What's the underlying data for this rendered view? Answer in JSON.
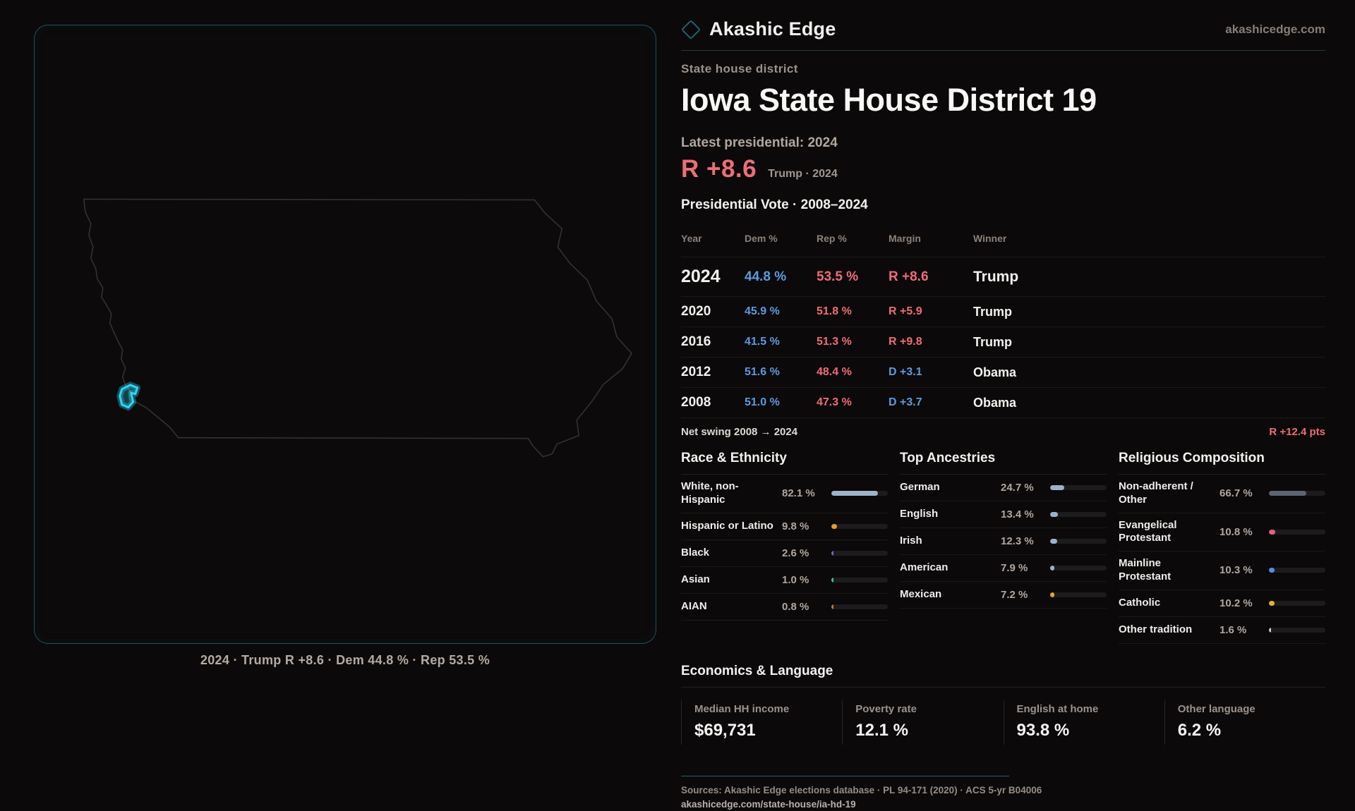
{
  "brand": {
    "name": "Akashic Edge",
    "domain": "akashicedge.com"
  },
  "header": {
    "kicker": "State house district",
    "title": "Iowa State House District 19"
  },
  "latest": {
    "label": "Latest presidential: 2024",
    "margin": "R +8.6",
    "note": "Trump · 2024"
  },
  "vote_table": {
    "title": "Presidential Vote · 2008–2024",
    "columns": {
      "year": "Year",
      "dem": "Dem %",
      "rep": "Rep %",
      "margin": "Margin",
      "winner": "Winner"
    },
    "rows": [
      {
        "year": "2024",
        "dem": "44.8 %",
        "rep": "53.5 %",
        "margin": "R +8.6",
        "margin_party": "R",
        "winner": "Trump",
        "featured": true
      },
      {
        "year": "2020",
        "dem": "45.9 %",
        "rep": "51.8 %",
        "margin": "R +5.9",
        "margin_party": "R",
        "winner": "Trump",
        "featured": false
      },
      {
        "year": "2016",
        "dem": "41.5 %",
        "rep": "51.3 %",
        "margin": "R +9.8",
        "margin_party": "R",
        "winner": "Trump",
        "featured": false
      },
      {
        "year": "2012",
        "dem": "51.6 %",
        "rep": "48.4 %",
        "margin": "D +3.1",
        "margin_party": "D",
        "winner": "Obama",
        "featured": false
      },
      {
        "year": "2008",
        "dem": "51.0 %",
        "rep": "47.3 %",
        "margin": "D +3.7",
        "margin_party": "D",
        "winner": "Obama",
        "featured": false
      }
    ]
  },
  "net_swing": {
    "label": "Net swing 2008 → 2024",
    "value": "R +12.4 pts"
  },
  "demographics": [
    {
      "heading": "Race & Ethnicity",
      "rows": [
        {
          "label": "White, non-Hispanic",
          "value": "82.1 %",
          "pct": 82.1,
          "color": "#9fb3c8"
        },
        {
          "label": "Hispanic or Latino",
          "value": "9.8 %",
          "pct": 9.8,
          "color": "#e39b2d"
        },
        {
          "label": "Black",
          "value": "2.6 %",
          "pct": 2.6,
          "color": "#7b5be0"
        },
        {
          "label": "Asian",
          "value": "1.0 %",
          "pct": 1.0,
          "color": "#35c98c"
        },
        {
          "label": "AIAN",
          "value": "0.8 %",
          "pct": 0.8,
          "color": "#c07a28"
        }
      ]
    },
    {
      "heading": "Top Ancestries",
      "rows": [
        {
          "label": "German",
          "value": "24.7 %",
          "pct": 24.7,
          "color": "#9fb3c8"
        },
        {
          "label": "English",
          "value": "13.4 %",
          "pct": 13.4,
          "color": "#9fb3c8"
        },
        {
          "label": "Irish",
          "value": "12.3 %",
          "pct": 12.3,
          "color": "#9fb3c8"
        },
        {
          "label": "American",
          "value": "7.9 %",
          "pct": 7.9,
          "color": "#9fb3c8"
        },
        {
          "label": "Mexican",
          "value": "7.2 %",
          "pct": 7.2,
          "color": "#e3a52d"
        }
      ]
    },
    {
      "heading": "Religious Composition",
      "rows": [
        {
          "label": "Non-adherent / Other",
          "value": "66.7 %",
          "pct": 66.7,
          "color": "#5c6572"
        },
        {
          "label": "Evangelical Protestant",
          "value": "10.8 %",
          "pct": 10.8,
          "color": "#e06570"
        },
        {
          "label": "Mainline Protestant",
          "value": "10.3 %",
          "pct": 10.3,
          "color": "#5590dd"
        },
        {
          "label": "Catholic",
          "value": "10.2 %",
          "pct": 10.2,
          "color": "#e0b23a"
        },
        {
          "label": "Other tradition",
          "value": "1.6 %",
          "pct": 1.6,
          "color": "#cfcac5"
        }
      ]
    }
  ],
  "economics": {
    "heading": "Economics & Language",
    "stats": [
      {
        "label": "Median HH income",
        "value": "$69,731"
      },
      {
        "label": "Poverty rate",
        "value": "12.1 %"
      },
      {
        "label": "English at home",
        "value": "93.8 %"
      },
      {
        "label": "Other language",
        "value": "6.2 %"
      }
    ]
  },
  "map": {
    "caption": "2024 · Trump R +8.6 · Dem 44.8 % · Rep 53.5 %"
  },
  "footer": {
    "sources": "Sources: Akashic Edge elections database · PL 94-171 (2020) · ACS 5-yr B04006",
    "permalink": "akashicedge.com/state-house/ia-hd-19"
  },
  "colors": {
    "accent_red": "#ef6d76",
    "accent_blue": "#5b9be0",
    "district_cyan": "#2ed6f5"
  }
}
